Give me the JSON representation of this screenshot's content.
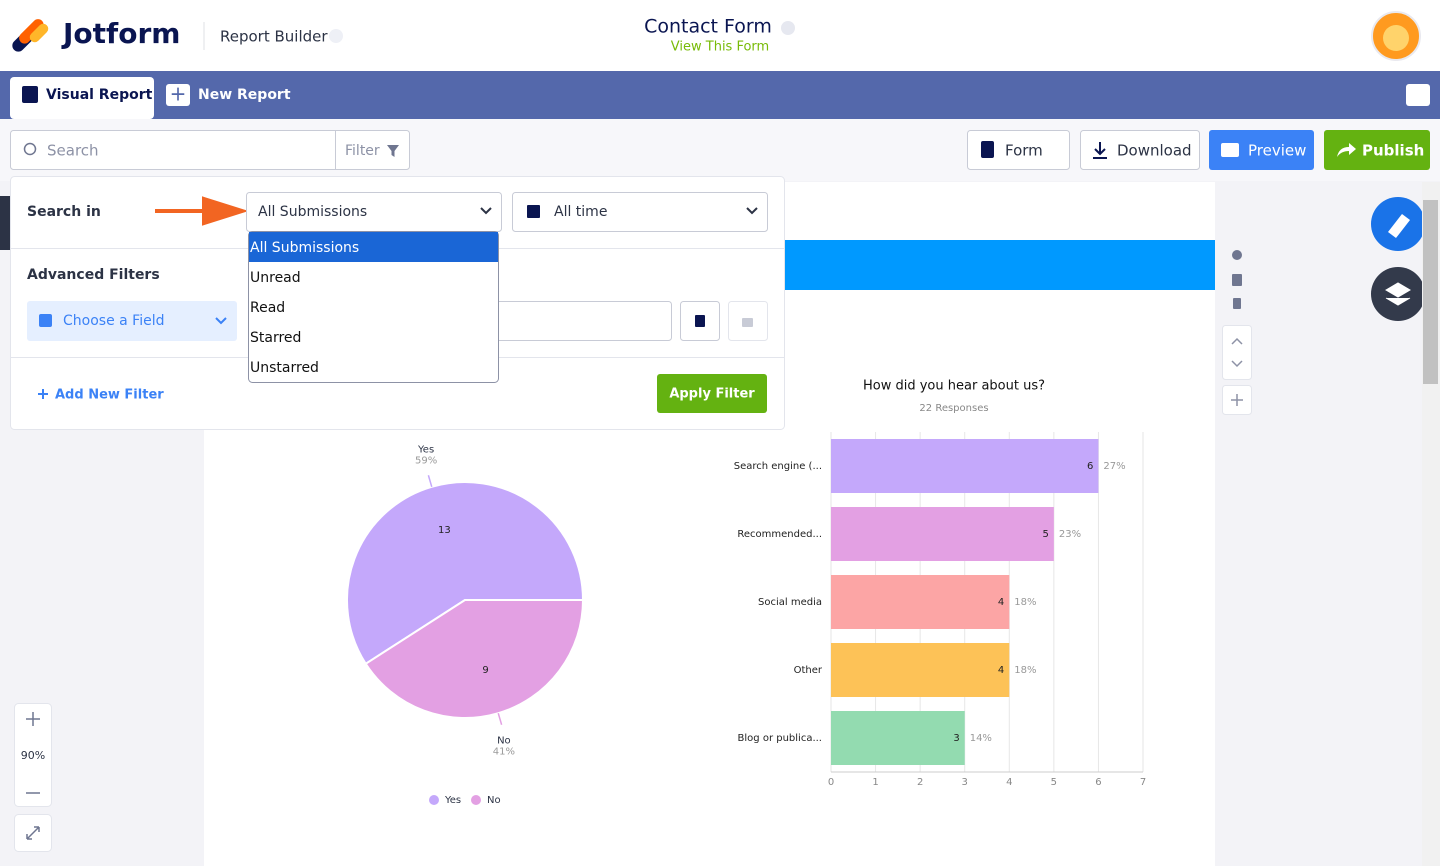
{
  "header": {
    "brand": "Jotform",
    "app": "Report Builder",
    "form_title": "Contact Form",
    "form_link": "View This Form"
  },
  "tabs": [
    "Visual Report",
    "New Report"
  ],
  "toolbar": {
    "search_placeholder": "Search",
    "filter": "Filter",
    "form": "Form",
    "download": "Download",
    "preview": "Preview",
    "publish": "Publish"
  },
  "filter_panel": {
    "search_in": "Search in",
    "submissions_select": "All Submissions",
    "time_select": "All time",
    "options": [
      "All Submissions",
      "Unread",
      "Read",
      "Starred",
      "Unstarred"
    ],
    "advanced": "Advanced Filters",
    "field_select": "Choose a Field",
    "add_filter": "Add New Filter",
    "apply": "Apply Filter"
  },
  "zoom": "90%",
  "chart_data": [
    {
      "type": "pie",
      "categories": [
        "Yes",
        "No"
      ],
      "values": [
        13,
        9
      ],
      "percent_labels": [
        "59%",
        "41%"
      ],
      "colors": [
        "#c4a8fb",
        "#e3a0e3"
      ],
      "legend": "bottom"
    },
    {
      "type": "bar",
      "title": "How did you hear about us?",
      "subtitle": "22 Responses",
      "categories": [
        "Search engine (...",
        "Recommended...",
        "Social media",
        "Other",
        "Blog or publica..."
      ],
      "values": [
        6,
        5,
        4,
        4,
        3
      ],
      "percent_labels": [
        "27%",
        "23%",
        "18%",
        "18%",
        "14%"
      ],
      "colors": [
        "#c4a8fb",
        "#e3a0e3",
        "#fca5a5",
        "#fdc257",
        "#93dbb0"
      ],
      "xlim": [
        0,
        7
      ],
      "xticks": [
        0,
        1,
        2,
        3,
        4,
        5,
        6,
        7
      ],
      "grid": true
    }
  ]
}
